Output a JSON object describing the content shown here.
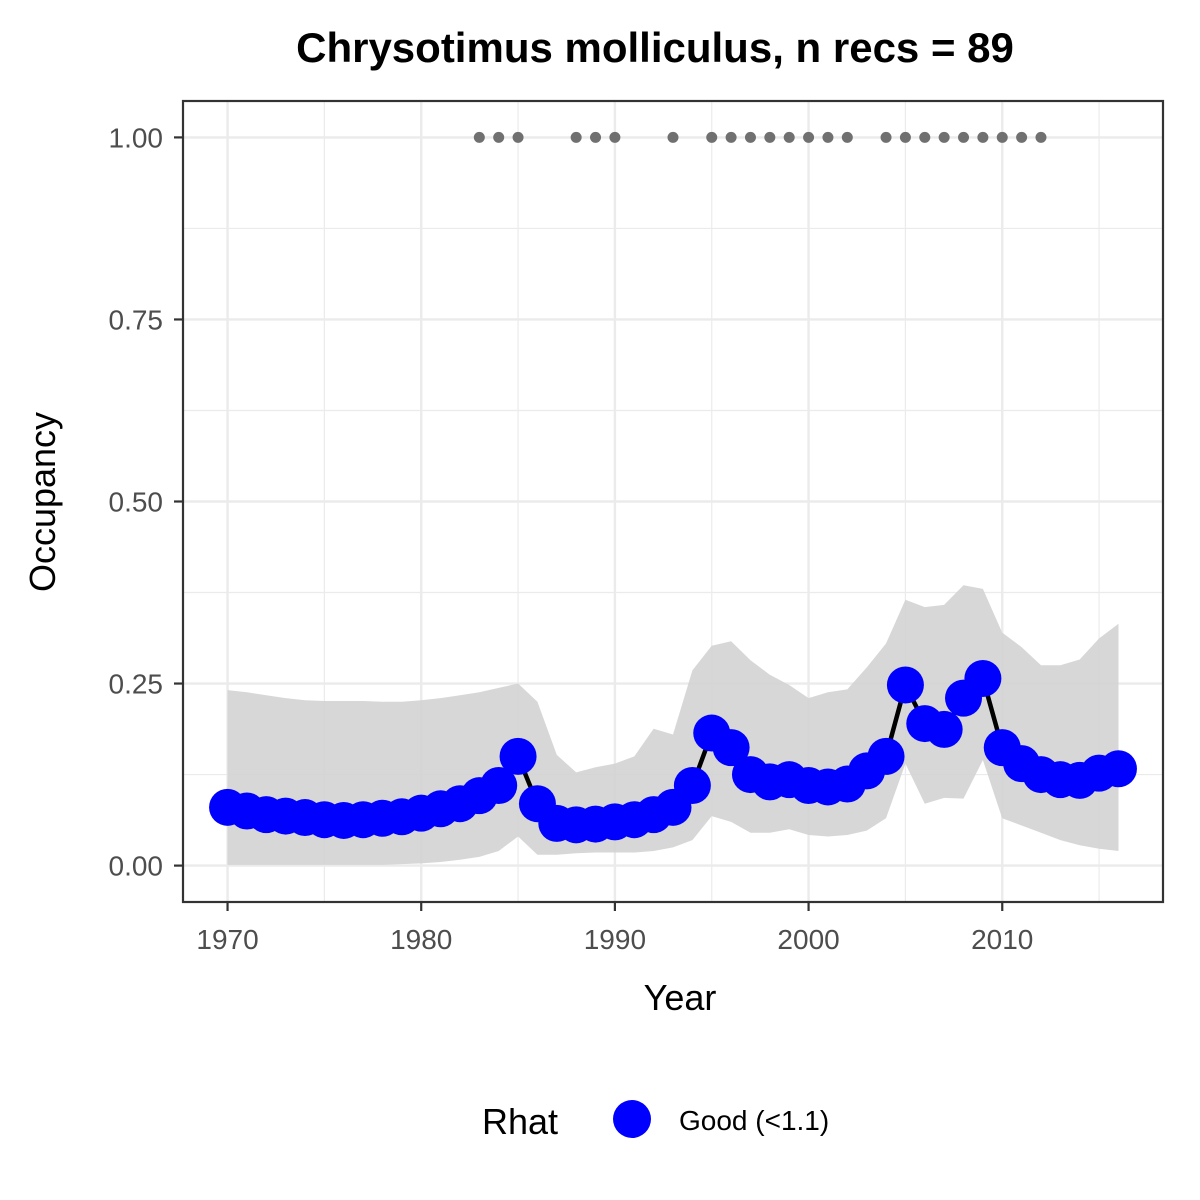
{
  "chart_data": {
    "type": "line",
    "title": "Chrysotimus molliculus, n recs = 89",
    "xlabel": "Year",
    "ylabel": "Occupancy",
    "xlim": [
      1967.7,
      2018.3
    ],
    "ylim": [
      -0.05,
      1.05
    ],
    "x_ticks": [
      1970,
      1980,
      1990,
      2000,
      2010
    ],
    "x_tick_labels": [
      "1970",
      "1980",
      "1990",
      "2000",
      "2010"
    ],
    "y_ticks": [
      0,
      0.25,
      0.5,
      0.75,
      1.0
    ],
    "y_tick_labels": [
      "0.00",
      "0.25",
      "0.50",
      "0.75",
      "1.00"
    ],
    "grid": true,
    "colors": {
      "points": "#0000ff",
      "line": "#000000",
      "ribbon": "#d3d3d3",
      "records": "#707070",
      "grid": "#ebebeb",
      "panel_border": "#333333"
    },
    "x": [
      1970,
      1971,
      1972,
      1973,
      1974,
      1975,
      1976,
      1977,
      1978,
      1979,
      1980,
      1981,
      1982,
      1983,
      1984,
      1985,
      1986,
      1987,
      1988,
      1989,
      1990,
      1991,
      1992,
      1993,
      1994,
      1995,
      1996,
      1997,
      1998,
      1999,
      2000,
      2001,
      2002,
      2003,
      2004,
      2005,
      2006,
      2007,
      2008,
      2009,
      2010,
      2011,
      2012,
      2013,
      2014,
      2015,
      2016
    ],
    "series": [
      {
        "type": "line-points",
        "values": [
          0.08,
          0.075,
          0.07,
          0.068,
          0.066,
          0.063,
          0.062,
          0.063,
          0.065,
          0.067,
          0.072,
          0.078,
          0.085,
          0.096,
          0.11,
          0.15,
          0.085,
          0.058,
          0.056,
          0.057,
          0.06,
          0.063,
          0.07,
          0.08,
          0.11,
          0.182,
          0.162,
          0.125,
          0.115,
          0.118,
          0.11,
          0.108,
          0.112,
          0.13,
          0.15,
          0.248,
          0.195,
          0.187,
          0.23,
          0.257,
          0.162,
          0.14,
          0.125,
          0.118,
          0.117,
          0.127,
          0.133
        ]
      },
      {
        "type": "ribbon",
        "lower": [
          0.001,
          0.001,
          0.001,
          0.001,
          0.001,
          0.001,
          0.001,
          0.001,
          0.001,
          0.002,
          0.003,
          0.005,
          0.008,
          0.012,
          0.02,
          0.04,
          0.015,
          0.015,
          0.017,
          0.018,
          0.018,
          0.018,
          0.02,
          0.025,
          0.035,
          0.068,
          0.06,
          0.045,
          0.045,
          0.05,
          0.042,
          0.04,
          0.042,
          0.048,
          0.065,
          0.14,
          0.085,
          0.093,
          0.092,
          0.145,
          0.065,
          0.055,
          0.045,
          0.035,
          0.028,
          0.023,
          0.02
        ],
        "upper": [
          0.241,
          0.238,
          0.234,
          0.23,
          0.227,
          0.226,
          0.226,
          0.226,
          0.225,
          0.225,
          0.227,
          0.23,
          0.234,
          0.238,
          0.244,
          0.25,
          0.225,
          0.152,
          0.128,
          0.135,
          0.14,
          0.15,
          0.188,
          0.18,
          0.268,
          0.302,
          0.308,
          0.282,
          0.262,
          0.248,
          0.23,
          0.238,
          0.242,
          0.272,
          0.305,
          0.365,
          0.355,
          0.358,
          0.385,
          0.38,
          0.32,
          0.3,
          0.275,
          0.275,
          0.283,
          0.312,
          0.332
        ]
      },
      {
        "type": "records",
        "x": [
          1983,
          1984,
          1985,
          1988,
          1989,
          1990,
          1993,
          1995,
          1996,
          1997,
          1998,
          1999,
          2000,
          2001,
          2002,
          2004,
          2005,
          2006,
          2007,
          2008,
          2009,
          2010,
          2011,
          2012
        ],
        "y": 1.0
      }
    ],
    "legend": {
      "title": "Rhat",
      "entries": [
        "Good (<1.1)"
      ],
      "position": "bottom"
    }
  }
}
